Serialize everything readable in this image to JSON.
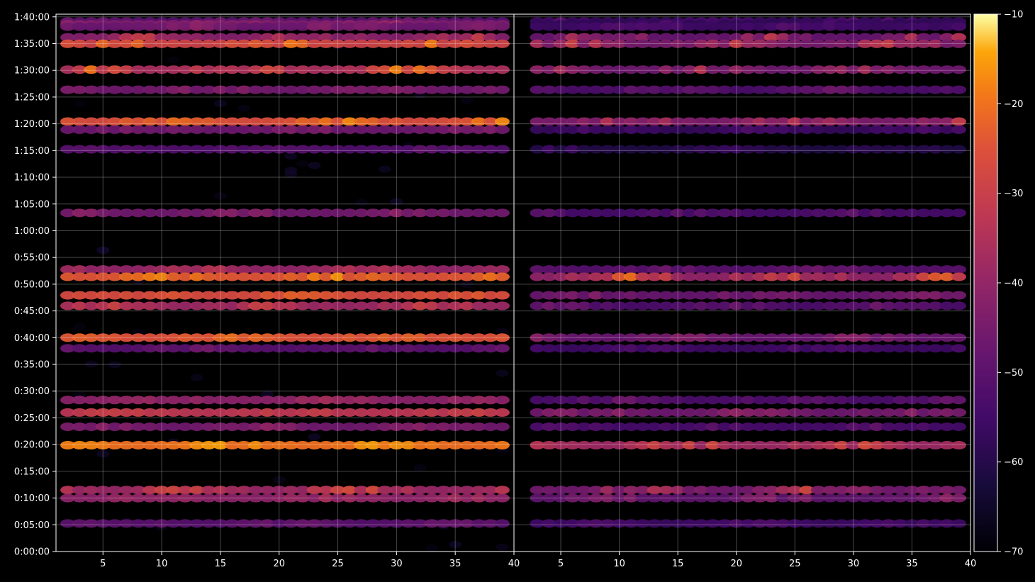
{
  "chart_data": {
    "type": "heatmap",
    "title": "",
    "xlabel": "",
    "ylabel": "",
    "panels": [
      {
        "name": "",
        "xlim": [
          1,
          40
        ],
        "xticks": [
          5,
          10,
          15,
          20,
          25,
          30,
          35,
          40
        ]
      },
      {
        "name": "",
        "xlim": [
          1,
          40
        ],
        "xticks": [
          5,
          10,
          15,
          20,
          25,
          30,
          35,
          40
        ]
      }
    ],
    "y_range_seconds": [
      0,
      6030
    ],
    "y_tick_labels": [
      "0:00:00",
      "0:05:00",
      "0:10:00",
      "0:15:00",
      "0:20:00",
      "0:25:00",
      "0:30:00",
      "0:35:00",
      "0:40:00",
      "0:45:00",
      "0:50:00",
      "0:55:00",
      "1:00:00",
      "1:05:00",
      "1:10:00",
      "1:15:00",
      "1:20:00",
      "1:25:00",
      "1:30:00",
      "1:35:00",
      "1:40:00"
    ],
    "grid": true,
    "colorbar": {
      "colormap": "inferno",
      "range": [
        -70,
        -10
      ],
      "tick_labels": [
        "−70",
        "−60",
        "−50",
        "−40",
        "−30",
        "−20",
        "−10"
      ]
    },
    "rows": [
      {
        "t": 5948,
        "left": [
          -55,
          -45
        ],
        "right": [
          -62,
          -50
        ]
      },
      {
        "t": 5918,
        "left": [
          -48,
          -38
        ],
        "right": [
          -62,
          -52
        ]
      },
      {
        "t": 5890,
        "left": [
          -52,
          -40
        ],
        "right": [
          -60,
          -50
        ]
      },
      {
        "t": 5770,
        "left": [
          -50,
          -30
        ],
        "right": [
          -60,
          -28
        ]
      },
      {
        "t": 5698,
        "left": [
          -36,
          -18
        ],
        "right": [
          -55,
          -28
        ]
      },
      {
        "t": 5408,
        "left": [
          -48,
          -16
        ],
        "right": [
          -55,
          -32
        ]
      },
      {
        "t": 5182,
        "left": [
          -50,
          -40
        ],
        "right": [
          -58,
          -45
        ]
      },
      {
        "t": 4825,
        "left": [
          -32,
          -16
        ],
        "right": [
          -52,
          -30
        ]
      },
      {
        "t": 4734,
        "left": [
          -50,
          -42
        ],
        "right": [
          -62,
          -50
        ]
      },
      {
        "t": 4514,
        "left": [
          -55,
          -48
        ],
        "right": [
          -65,
          -55
        ]
      },
      {
        "t": 3800,
        "left": [
          -50,
          -40
        ],
        "right": [
          -58,
          -48
        ]
      },
      {
        "t": 3165,
        "left": [
          -45,
          -32
        ],
        "right": [
          -55,
          -45
        ]
      },
      {
        "t": 3083,
        "left": [
          -30,
          -15
        ],
        "right": [
          -55,
          -15
        ]
      },
      {
        "t": 2875,
        "left": [
          -30,
          -22
        ],
        "right": [
          -52,
          -42
        ]
      },
      {
        "t": 2757,
        "left": [
          -45,
          -28
        ],
        "right": [
          -58,
          -45
        ]
      },
      {
        "t": 2400,
        "left": [
          -28,
          -20
        ],
        "right": [
          -52,
          -40
        ]
      },
      {
        "t": 2280,
        "left": [
          -55,
          -45
        ],
        "right": [
          -60,
          -50
        ]
      },
      {
        "t": 1700,
        "left": [
          -45,
          -36
        ],
        "right": [
          -58,
          -45
        ]
      },
      {
        "t": 1560,
        "left": [
          -36,
          -28
        ],
        "right": [
          -52,
          -38
        ]
      },
      {
        "t": 1400,
        "left": [
          -50,
          -40
        ],
        "right": [
          -58,
          -48
        ]
      },
      {
        "t": 1193,
        "left": [
          -24,
          -14
        ],
        "right": [
          -48,
          -22
        ]
      },
      {
        "t": 690,
        "left": [
          -50,
          -20
        ],
        "right": [
          -58,
          -25
        ]
      },
      {
        "t": 600,
        "left": [
          -45,
          -35
        ],
        "right": [
          -55,
          -40
        ]
      },
      {
        "t": 315,
        "left": [
          -55,
          -45
        ],
        "right": [
          -60,
          -50
        ]
      }
    ]
  }
}
